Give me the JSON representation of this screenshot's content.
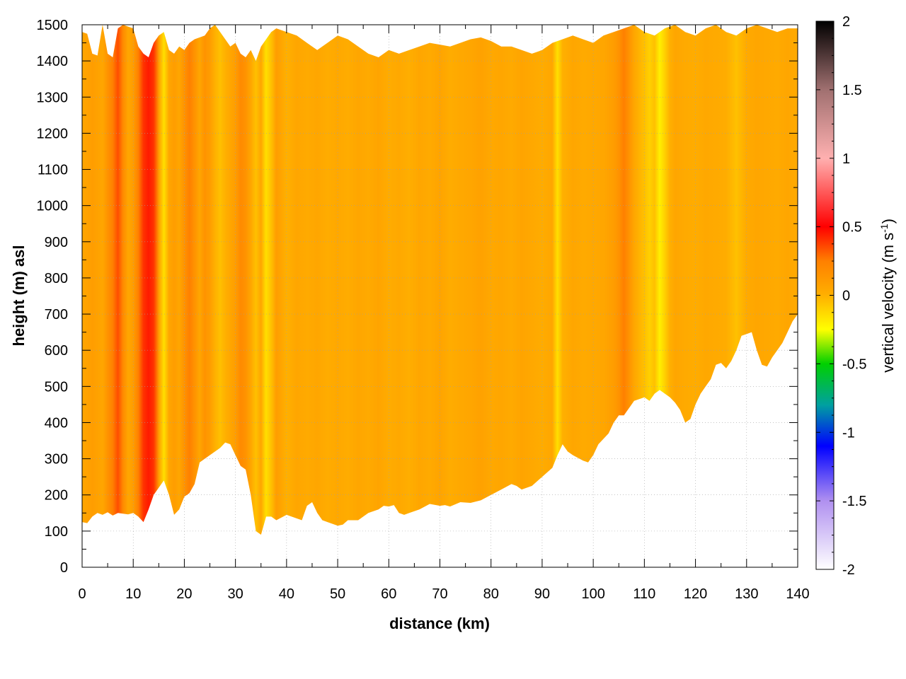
{
  "chart_data": {
    "type": "heatmap",
    "title": "",
    "xlabel": "distance (km)",
    "ylabel": "height (m) asl",
    "xlim": [
      0,
      140
    ],
    "ylim": [
      0,
      1500
    ],
    "x_ticks": [
      "0",
      "10",
      "20",
      "30",
      "40",
      "50",
      "60",
      "70",
      "80",
      "90",
      "100",
      "110",
      "120",
      "130",
      "140"
    ],
    "y_ticks": [
      "0",
      "100",
      "200",
      "300",
      "400",
      "500",
      "600",
      "700",
      "800",
      "900",
      "1000",
      "1100",
      "1200",
      "1300",
      "1400",
      "1500"
    ],
    "grid": true,
    "colorbar": {
      "label": "vertical velocity (m s",
      "label_sup": "-1",
      "label_end": ")",
      "range": [
        -2,
        2
      ],
      "ticks": [
        "-2",
        "-1.5",
        "-1",
        "-0.5",
        "0",
        "0.5",
        "1",
        "1.5",
        "2"
      ],
      "placement": "right",
      "colormap": [
        {
          "v": -2.0,
          "color": "#ffffff"
        },
        {
          "v": -1.5,
          "color": "#b090f0"
        },
        {
          "v": -1.1,
          "color": "#0000ff"
        },
        {
          "v": -0.8,
          "color": "#00a0a0"
        },
        {
          "v": -0.5,
          "color": "#00d000"
        },
        {
          "v": -0.25,
          "color": "#ffff00"
        },
        {
          "v": 0.0,
          "color": "#ffb000"
        },
        {
          "v": 0.25,
          "color": "#ff8000"
        },
        {
          "v": 0.5,
          "color": "#ff0000"
        },
        {
          "v": 1.0,
          "color": "#ffb0b0"
        },
        {
          "v": 1.5,
          "color": "#a07070"
        },
        {
          "v": 2.0,
          "color": "#000000"
        }
      ]
    },
    "terrain_bottom": [
      [
        0,
        125
      ],
      [
        1,
        122
      ],
      [
        2,
        140
      ],
      [
        3,
        150
      ],
      [
        4,
        145
      ],
      [
        5,
        152
      ],
      [
        6,
        143
      ],
      [
        7,
        150
      ],
      [
        8,
        148
      ],
      [
        9,
        146
      ],
      [
        10,
        150
      ],
      [
        11,
        140
      ],
      [
        12,
        125
      ],
      [
        13,
        160
      ],
      [
        14,
        200
      ],
      [
        15,
        220
      ],
      [
        16,
        240
      ],
      [
        17,
        200
      ],
      [
        18,
        145
      ],
      [
        19,
        160
      ],
      [
        20,
        195
      ],
      [
        21,
        205
      ],
      [
        22,
        230
      ],
      [
        23,
        290
      ],
      [
        25,
        310
      ],
      [
        27,
        330
      ],
      [
        28,
        345
      ],
      [
        29,
        340
      ],
      [
        30,
        310
      ],
      [
        31,
        280
      ],
      [
        32,
        270
      ],
      [
        33,
        200
      ],
      [
        34,
        100
      ],
      [
        35,
        90
      ],
      [
        36,
        140
      ],
      [
        37,
        140
      ],
      [
        38,
        130
      ],
      [
        40,
        145
      ],
      [
        42,
        135
      ],
      [
        43,
        130
      ],
      [
        44,
        170
      ],
      [
        45,
        180
      ],
      [
        46,
        150
      ],
      [
        47,
        130
      ],
      [
        48,
        125
      ],
      [
        50,
        115
      ],
      [
        51,
        118
      ],
      [
        52,
        130
      ],
      [
        54,
        130
      ],
      [
        55,
        140
      ],
      [
        56,
        150
      ],
      [
        58,
        160
      ],
      [
        59,
        170
      ],
      [
        60,
        168
      ],
      [
        61,
        172
      ],
      [
        62,
        150
      ],
      [
        63,
        145
      ],
      [
        64,
        150
      ],
      [
        66,
        160
      ],
      [
        68,
        175
      ],
      [
        70,
        170
      ],
      [
        71,
        172
      ],
      [
        72,
        168
      ],
      [
        74,
        180
      ],
      [
        76,
        178
      ],
      [
        78,
        185
      ],
      [
        80,
        200
      ],
      [
        82,
        215
      ],
      [
        84,
        230
      ],
      [
        85,
        225
      ],
      [
        86,
        215
      ],
      [
        88,
        225
      ],
      [
        90,
        250
      ],
      [
        92,
        275
      ],
      [
        93,
        310
      ],
      [
        94,
        340
      ],
      [
        95,
        320
      ],
      [
        96,
        310
      ],
      [
        98,
        295
      ],
      [
        99,
        290
      ],
      [
        100,
        310
      ],
      [
        101,
        340
      ],
      [
        103,
        370
      ],
      [
        104,
        400
      ],
      [
        105,
        420
      ],
      [
        106,
        420
      ],
      [
        107,
        440
      ],
      [
        108,
        460
      ],
      [
        110,
        470
      ],
      [
        111,
        460
      ],
      [
        112,
        480
      ],
      [
        113,
        490
      ],
      [
        115,
        470
      ],
      [
        116,
        455
      ],
      [
        117,
        435
      ],
      [
        118,
        400
      ],
      [
        119,
        410
      ],
      [
        120,
        450
      ],
      [
        121,
        480
      ],
      [
        122,
        500
      ],
      [
        123,
        520
      ],
      [
        124,
        560
      ],
      [
        125,
        565
      ],
      [
        126,
        550
      ],
      [
        127,
        570
      ],
      [
        128,
        600
      ],
      [
        129,
        640
      ],
      [
        130,
        645
      ],
      [
        131,
        650
      ],
      [
        132,
        600
      ],
      [
        133,
        560
      ],
      [
        134,
        555
      ],
      [
        135,
        580
      ],
      [
        136,
        600
      ],
      [
        137,
        620
      ],
      [
        138,
        650
      ],
      [
        139,
        680
      ],
      [
        140,
        700
      ]
    ],
    "data_top": [
      [
        0,
        1480
      ],
      [
        1,
        1475
      ],
      [
        2,
        1420
      ],
      [
        3,
        1415
      ],
      [
        4,
        1500
      ],
      [
        5,
        1420
      ],
      [
        6,
        1410
      ],
      [
        7,
        1490
      ],
      [
        8,
        1500
      ],
      [
        9,
        1495
      ],
      [
        10,
        1490
      ],
      [
        11,
        1440
      ],
      [
        12,
        1420
      ],
      [
        13,
        1410
      ],
      [
        14,
        1450
      ],
      [
        15,
        1470
      ],
      [
        16,
        1480
      ],
      [
        17,
        1430
      ],
      [
        18,
        1420
      ],
      [
        19,
        1440
      ],
      [
        20,
        1430
      ],
      [
        21,
        1450
      ],
      [
        22,
        1460
      ],
      [
        24,
        1470
      ],
      [
        25,
        1490
      ],
      [
        26,
        1500
      ],
      [
        27,
        1480
      ],
      [
        28,
        1460
      ],
      [
        29,
        1440
      ],
      [
        30,
        1450
      ],
      [
        31,
        1420
      ],
      [
        32,
        1410
      ],
      [
        33,
        1430
      ],
      [
        34,
        1400
      ],
      [
        35,
        1440
      ],
      [
        36,
        1460
      ],
      [
        37,
        1480
      ],
      [
        38,
        1490
      ],
      [
        40,
        1480
      ],
      [
        42,
        1470
      ],
      [
        44,
        1450
      ],
      [
        45,
        1440
      ],
      [
        46,
        1430
      ],
      [
        48,
        1450
      ],
      [
        50,
        1470
      ],
      [
        52,
        1460
      ],
      [
        54,
        1440
      ],
      [
        56,
        1420
      ],
      [
        58,
        1410
      ],
      [
        60,
        1430
      ],
      [
        62,
        1420
      ],
      [
        64,
        1430
      ],
      [
        66,
        1440
      ],
      [
        68,
        1450
      ],
      [
        70,
        1445
      ],
      [
        72,
        1440
      ],
      [
        74,
        1450
      ],
      [
        76,
        1460
      ],
      [
        78,
        1465
      ],
      [
        80,
        1455
      ],
      [
        82,
        1440
      ],
      [
        84,
        1440
      ],
      [
        86,
        1430
      ],
      [
        88,
        1420
      ],
      [
        90,
        1430
      ],
      [
        92,
        1450
      ],
      [
        94,
        1460
      ],
      [
        96,
        1470
      ],
      [
        98,
        1460
      ],
      [
        100,
        1450
      ],
      [
        102,
        1470
      ],
      [
        104,
        1480
      ],
      [
        106,
        1490
      ],
      [
        108,
        1500
      ],
      [
        110,
        1480
      ],
      [
        112,
        1470
      ],
      [
        114,
        1490
      ],
      [
        116,
        1500
      ],
      [
        118,
        1480
      ],
      [
        120,
        1470
      ],
      [
        122,
        1490
      ],
      [
        124,
        1500
      ],
      [
        126,
        1480
      ],
      [
        128,
        1470
      ],
      [
        130,
        1490
      ],
      [
        132,
        1500
      ],
      [
        134,
        1490
      ],
      [
        136,
        1480
      ],
      [
        138,
        1490
      ],
      [
        140,
        1490
      ]
    ],
    "columns": [
      [
        0,
        0.05
      ],
      [
        2,
        0.1
      ],
      [
        4,
        0.05
      ],
      [
        5,
        0.15
      ],
      [
        6,
        0.25
      ],
      [
        7,
        0.35
      ],
      [
        8,
        0.2
      ],
      [
        9,
        0.05
      ],
      [
        10,
        0.1
      ],
      [
        11,
        0.25
      ],
      [
        12,
        0.4
      ],
      [
        13,
        0.45
      ],
      [
        14,
        0.4
      ],
      [
        15,
        0.1
      ],
      [
        16,
        -0.15
      ],
      [
        17,
        0.05
      ],
      [
        18,
        0.1
      ],
      [
        19,
        0.05
      ],
      [
        20,
        0.15
      ],
      [
        21,
        0.25
      ],
      [
        22,
        0.15
      ],
      [
        23,
        0.05
      ],
      [
        24,
        0.15
      ],
      [
        25,
        0.1
      ],
      [
        26,
        0.0
      ],
      [
        27,
        -0.05
      ],
      [
        28,
        0.0
      ],
      [
        29,
        0.05
      ],
      [
        30,
        0.1
      ],
      [
        31,
        0.2
      ],
      [
        32,
        0.15
      ],
      [
        33,
        0.05
      ],
      [
        34,
        -0.05
      ],
      [
        35,
        0.05
      ],
      [
        36,
        -0.15
      ],
      [
        37,
        -0.05
      ],
      [
        38,
        0.1
      ],
      [
        39,
        0.05
      ],
      [
        40,
        0.0
      ],
      [
        42,
        0.05
      ],
      [
        44,
        0.03
      ],
      [
        46,
        0.05
      ],
      [
        48,
        0.02
      ],
      [
        50,
        0.04
      ],
      [
        52,
        0.02
      ],
      [
        54,
        0.05
      ],
      [
        56,
        0.03
      ],
      [
        58,
        0.06
      ],
      [
        60,
        0.02
      ],
      [
        62,
        0.04
      ],
      [
        64,
        0.01
      ],
      [
        66,
        0.05
      ],
      [
        68,
        0.03
      ],
      [
        70,
        0.06
      ],
      [
        72,
        0.02
      ],
      [
        74,
        0.04
      ],
      [
        76,
        0.05
      ],
      [
        78,
        0.08
      ],
      [
        80,
        0.04
      ],
      [
        82,
        0.05
      ],
      [
        84,
        0.03
      ],
      [
        86,
        0.06
      ],
      [
        88,
        0.04
      ],
      [
        90,
        0.02
      ],
      [
        92,
        0.05
      ],
      [
        93,
        -0.15
      ],
      [
        94,
        0.0
      ],
      [
        96,
        0.05
      ],
      [
        98,
        0.03
      ],
      [
        100,
        0.04
      ],
      [
        102,
        0.05
      ],
      [
        104,
        0.1
      ],
      [
        105,
        0.15
      ],
      [
        106,
        0.25
      ],
      [
        107,
        0.15
      ],
      [
        108,
        0.05
      ],
      [
        110,
        -0.05
      ],
      [
        111,
        -0.1
      ],
      [
        112,
        -0.05
      ],
      [
        113,
        -0.2
      ],
      [
        114,
        -0.1
      ],
      [
        115,
        0.0
      ],
      [
        116,
        0.05
      ],
      [
        118,
        0.03
      ],
      [
        120,
        0.02
      ],
      [
        122,
        0.04
      ],
      [
        124,
        0.03
      ],
      [
        126,
        0.02
      ],
      [
        128,
        -0.05
      ],
      [
        130,
        0.03
      ],
      [
        132,
        0.05
      ],
      [
        134,
        0.04
      ],
      [
        136,
        0.03
      ],
      [
        138,
        0.05
      ],
      [
        140,
        0.03
      ]
    ]
  }
}
